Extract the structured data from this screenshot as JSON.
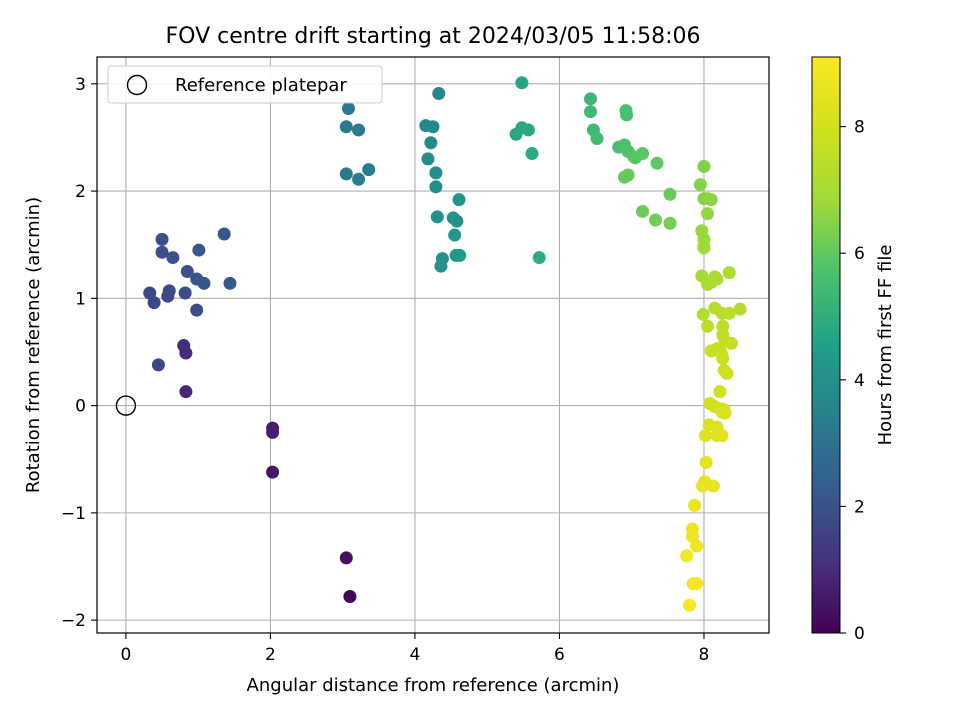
{
  "chart_data": {
    "type": "scatter",
    "title": "FOV centre drift starting at 2024/03/05 11:58:06",
    "xlabel": "Angular distance from reference (arcmin)",
    "ylabel": "Rotation from reference (arcmin)",
    "xlim": [
      -0.4,
      8.9
    ],
    "ylim": [
      -2.12,
      3.25
    ],
    "xticks": [
      0,
      2,
      4,
      6,
      8
    ],
    "xtick_labels": [
      "0",
      "2",
      "4",
      "6",
      "8"
    ],
    "yticks": [
      -2,
      -1,
      0,
      1,
      2,
      3
    ],
    "ytick_labels": [
      "−2",
      "−1",
      "0",
      "1",
      "2",
      "3"
    ],
    "grid": true,
    "legend": {
      "position": "top-left",
      "entries": [
        {
          "label": "Reference platepar",
          "marker": "open-circle"
        }
      ]
    },
    "reference_point": {
      "x": 0,
      "y": 0
    },
    "colorbar": {
      "label": "Hours from first FF file",
      "colormap": "viridis",
      "range": [
        0,
        9.1
      ],
      "ticks": [
        0,
        2,
        4,
        6,
        8
      ],
      "tick_labels": [
        "0",
        "2",
        "4",
        "6",
        "8"
      ]
    },
    "series": [
      {
        "points": [
          {
            "x": 3.1,
            "y": -1.78,
            "c": 0.1
          },
          {
            "x": 3.05,
            "y": -1.42,
            "c": 0.3
          },
          {
            "x": 2.03,
            "y": -0.62,
            "c": 0.5
          },
          {
            "x": 2.03,
            "y": -0.25,
            "c": 0.6
          },
          {
            "x": 2.03,
            "y": -0.21,
            "c": 0.65
          },
          {
            "x": 0.83,
            "y": 0.13,
            "c": 0.9
          },
          {
            "x": 0.83,
            "y": 0.49,
            "c": 1.0
          },
          {
            "x": 0.8,
            "y": 0.56,
            "c": 1.05
          },
          {
            "x": 0.45,
            "y": 0.38,
            "c": 1.7
          },
          {
            "x": 0.33,
            "y": 1.05,
            "c": 1.75
          },
          {
            "x": 0.39,
            "y": 0.96,
            "c": 1.75
          },
          {
            "x": 0.58,
            "y": 1.02,
            "c": 1.8
          },
          {
            "x": 0.6,
            "y": 1.07,
            "c": 1.8
          },
          {
            "x": 0.82,
            "y": 1.05,
            "c": 1.85
          },
          {
            "x": 0.98,
            "y": 0.89,
            "c": 1.9
          },
          {
            "x": 0.5,
            "y": 1.43,
            "c": 1.9
          },
          {
            "x": 0.5,
            "y": 1.55,
            "c": 1.95
          },
          {
            "x": 0.65,
            "y": 1.38,
            "c": 2.0
          },
          {
            "x": 0.85,
            "y": 1.25,
            "c": 2.0
          },
          {
            "x": 0.98,
            "y": 1.18,
            "c": 2.05
          },
          {
            "x": 1.08,
            "y": 1.14,
            "c": 2.1
          },
          {
            "x": 1.01,
            "y": 1.45,
            "c": 2.1
          },
          {
            "x": 1.36,
            "y": 1.6,
            "c": 2.15
          },
          {
            "x": 1.44,
            "y": 1.14,
            "c": 2.2
          },
          {
            "x": 3.05,
            "y": 2.16,
            "c": 3.2
          },
          {
            "x": 3.05,
            "y": 2.6,
            "c": 3.25
          },
          {
            "x": 3.08,
            "y": 2.77,
            "c": 3.25
          },
          {
            "x": 3.22,
            "y": 2.57,
            "c": 3.3
          },
          {
            "x": 3.22,
            "y": 2.11,
            "c": 3.3
          },
          {
            "x": 3.36,
            "y": 2.2,
            "c": 3.35
          },
          {
            "x": 4.15,
            "y": 2.61,
            "c": 3.7
          },
          {
            "x": 4.25,
            "y": 2.6,
            "c": 3.75
          },
          {
            "x": 4.33,
            "y": 2.91,
            "c": 3.75
          },
          {
            "x": 4.22,
            "y": 2.45,
            "c": 3.8
          },
          {
            "x": 4.18,
            "y": 2.3,
            "c": 3.85
          },
          {
            "x": 4.29,
            "y": 2.17,
            "c": 3.9
          },
          {
            "x": 4.29,
            "y": 2.04,
            "c": 3.95
          },
          {
            "x": 4.31,
            "y": 1.76,
            "c": 4.0
          },
          {
            "x": 4.38,
            "y": 1.37,
            "c": 4.05
          },
          {
            "x": 4.36,
            "y": 1.3,
            "c": 4.05
          },
          {
            "x": 4.53,
            "y": 1.75,
            "c": 4.1
          },
          {
            "x": 4.58,
            "y": 1.72,
            "c": 4.15
          },
          {
            "x": 4.61,
            "y": 1.92,
            "c": 4.15
          },
          {
            "x": 4.55,
            "y": 1.59,
            "c": 4.2
          },
          {
            "x": 4.57,
            "y": 1.4,
            "c": 4.25
          },
          {
            "x": 4.62,
            "y": 1.4,
            "c": 4.3
          },
          {
            "x": 5.48,
            "y": 3.01,
            "c": 4.7
          },
          {
            "x": 5.4,
            "y": 2.53,
            "c": 4.75
          },
          {
            "x": 5.48,
            "y": 2.59,
            "c": 4.8
          },
          {
            "x": 5.57,
            "y": 2.57,
            "c": 4.85
          },
          {
            "x": 5.62,
            "y": 2.35,
            "c": 4.9
          },
          {
            "x": 5.72,
            "y": 1.38,
            "c": 4.95
          },
          {
            "x": 6.43,
            "y": 2.86,
            "c": 5.3
          },
          {
            "x": 6.43,
            "y": 2.74,
            "c": 5.35
          },
          {
            "x": 6.47,
            "y": 2.57,
            "c": 5.4
          },
          {
            "x": 6.52,
            "y": 2.49,
            "c": 5.45
          },
          {
            "x": 6.92,
            "y": 2.75,
            "c": 5.6
          },
          {
            "x": 6.93,
            "y": 2.71,
            "c": 5.6
          },
          {
            "x": 6.82,
            "y": 2.41,
            "c": 5.65
          },
          {
            "x": 6.9,
            "y": 2.43,
            "c": 5.7
          },
          {
            "x": 6.95,
            "y": 2.37,
            "c": 5.75
          },
          {
            "x": 7.03,
            "y": 2.32,
            "c": 5.8
          },
          {
            "x": 7.05,
            "y": 2.31,
            "c": 5.85
          },
          {
            "x": 7.15,
            "y": 2.35,
            "c": 5.9
          },
          {
            "x": 7.35,
            "y": 2.26,
            "c": 5.95
          },
          {
            "x": 6.9,
            "y": 2.13,
            "c": 6.0
          },
          {
            "x": 6.95,
            "y": 2.15,
            "c": 6.05
          },
          {
            "x": 7.53,
            "y": 1.97,
            "c": 6.1
          },
          {
            "x": 7.15,
            "y": 1.81,
            "c": 6.15
          },
          {
            "x": 7.33,
            "y": 1.73,
            "c": 6.2
          },
          {
            "x": 7.53,
            "y": 1.7,
            "c": 6.25
          },
          {
            "x": 8.0,
            "y": 2.23,
            "c": 6.4
          },
          {
            "x": 7.95,
            "y": 2.06,
            "c": 6.45
          },
          {
            "x": 8.0,
            "y": 1.93,
            "c": 6.5
          },
          {
            "x": 8.05,
            "y": 1.93,
            "c": 6.55
          },
          {
            "x": 8.1,
            "y": 1.92,
            "c": 6.6
          },
          {
            "x": 8.05,
            "y": 1.79,
            "c": 6.65
          },
          {
            "x": 7.97,
            "y": 1.63,
            "c": 6.7
          },
          {
            "x": 8.0,
            "y": 1.55,
            "c": 6.75
          },
          {
            "x": 8.0,
            "y": 1.48,
            "c": 6.8
          },
          {
            "x": 8.0,
            "y": 1.47,
            "c": 6.85
          },
          {
            "x": 7.97,
            "y": 1.21,
            "c": 6.95
          },
          {
            "x": 8.1,
            "y": 1.15,
            "c": 7.0
          },
          {
            "x": 8.15,
            "y": 1.2,
            "c": 7.0
          },
          {
            "x": 8.05,
            "y": 1.13,
            "c": 7.05
          },
          {
            "x": 8.18,
            "y": 1.18,
            "c": 7.1
          },
          {
            "x": 8.35,
            "y": 1.24,
            "c": 7.15
          },
          {
            "x": 8.5,
            "y": 0.9,
            "c": 7.2
          },
          {
            "x": 7.99,
            "y": 0.85,
            "c": 7.25
          },
          {
            "x": 8.15,
            "y": 0.91,
            "c": 7.3
          },
          {
            "x": 8.25,
            "y": 0.86,
            "c": 7.35
          },
          {
            "x": 8.35,
            "y": 0.86,
            "c": 7.4
          },
          {
            "x": 8.05,
            "y": 0.74,
            "c": 7.45
          },
          {
            "x": 8.26,
            "y": 0.74,
            "c": 7.5
          },
          {
            "x": 8.26,
            "y": 0.66,
            "c": 7.55
          },
          {
            "x": 8.29,
            "y": 0.6,
            "c": 7.6
          },
          {
            "x": 8.38,
            "y": 0.58,
            "c": 7.65
          },
          {
            "x": 8.1,
            "y": 0.51,
            "c": 7.7
          },
          {
            "x": 8.18,
            "y": 0.53,
            "c": 7.7
          },
          {
            "x": 8.24,
            "y": 0.49,
            "c": 7.75
          },
          {
            "x": 8.26,
            "y": 0.44,
            "c": 7.8
          },
          {
            "x": 8.28,
            "y": 0.33,
            "c": 7.85
          },
          {
            "x": 8.32,
            "y": 0.3,
            "c": 7.9
          },
          {
            "x": 8.22,
            "y": 0.13,
            "c": 7.95
          },
          {
            "x": 8.08,
            "y": 0.02,
            "c": 8.0
          },
          {
            "x": 8.15,
            "y": -0.01,
            "c": 8.05
          },
          {
            "x": 8.24,
            "y": -0.03,
            "c": 8.1
          },
          {
            "x": 8.28,
            "y": -0.04,
            "c": 8.15
          },
          {
            "x": 8.29,
            "y": -0.07,
            "c": 8.2
          },
          {
            "x": 8.25,
            "y": -0.06,
            "c": 8.2
          },
          {
            "x": 8.07,
            "y": -0.18,
            "c": 8.25
          },
          {
            "x": 8.18,
            "y": -0.2,
            "c": 8.3
          },
          {
            "x": 8.02,
            "y": -0.28,
            "c": 8.35
          },
          {
            "x": 8.18,
            "y": -0.28,
            "c": 8.35
          },
          {
            "x": 8.25,
            "y": -0.28,
            "c": 8.4
          },
          {
            "x": 8.03,
            "y": -0.53,
            "c": 8.45
          },
          {
            "x": 8.01,
            "y": -0.71,
            "c": 8.5
          },
          {
            "x": 7.98,
            "y": -0.75,
            "c": 8.55
          },
          {
            "x": 8.13,
            "y": -0.75,
            "c": 8.6
          },
          {
            "x": 7.87,
            "y": -0.93,
            "c": 8.65
          },
          {
            "x": 7.84,
            "y": -1.15,
            "c": 8.7
          },
          {
            "x": 7.84,
            "y": -1.22,
            "c": 8.75
          },
          {
            "x": 7.9,
            "y": -1.31,
            "c": 8.8
          },
          {
            "x": 7.76,
            "y": -1.4,
            "c": 8.85
          },
          {
            "x": 7.85,
            "y": -1.66,
            "c": 8.9
          },
          {
            "x": 7.9,
            "y": -1.66,
            "c": 8.95
          },
          {
            "x": 7.8,
            "y": -1.86,
            "c": 9.0
          }
        ]
      }
    ]
  }
}
